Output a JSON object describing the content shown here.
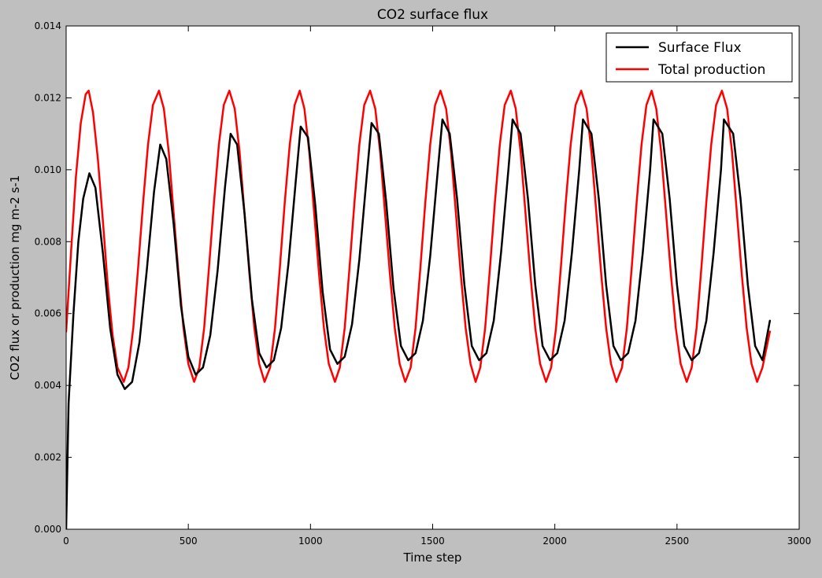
{
  "chart_data": {
    "type": "line",
    "title": "CO2 surface flux",
    "xlabel": "Time step",
    "ylabel": "CO2 flux or production mg m-2 s-1",
    "xlim": [
      0,
      3000
    ],
    "ylim": [
      0,
      0.014
    ],
    "x_ticks": [
      0,
      500,
      1000,
      1500,
      2000,
      2500,
      3000
    ],
    "x_tick_labels": [
      "0",
      "500",
      "1000",
      "1500",
      "2000",
      "2500",
      "3000"
    ],
    "y_ticks": [
      0,
      0.002,
      0.004,
      0.006,
      0.008,
      0.01,
      0.012,
      0.014
    ],
    "y_tick_labels": [
      "0.000",
      "0.002",
      "0.004",
      "0.006",
      "0.008",
      "0.010",
      "0.012",
      "0.014"
    ],
    "grid": false,
    "legend_position": "top-right",
    "series": [
      {
        "name": "Surface Flux",
        "color": "#000000",
        "x": [
          0,
          10,
          30,
          50,
          70,
          95,
          120,
          150,
          180,
          210,
          240,
          270,
          300,
          330,
          360,
          385,
          410,
          440,
          470,
          500,
          530,
          560,
          590,
          620,
          650,
          673,
          700,
          730,
          760,
          790,
          820,
          850,
          880,
          910,
          940,
          960,
          990,
          1020,
          1050,
          1080,
          1110,
          1140,
          1170,
          1200,
          1230,
          1250,
          1280,
          1310,
          1340,
          1370,
          1400,
          1430,
          1460,
          1490,
          1520,
          1540,
          1570,
          1600,
          1630,
          1660,
          1690,
          1720,
          1750,
          1780,
          1810,
          1827,
          1860,
          1890,
          1920,
          1950,
          1980,
          2010,
          2040,
          2070,
          2100,
          2115,
          2150,
          2180,
          2210,
          2240,
          2270,
          2300,
          2330,
          2360,
          2390,
          2404,
          2440,
          2470,
          2500,
          2530,
          2560,
          2590,
          2620,
          2650,
          2680,
          2692,
          2730,
          2760,
          2790,
          2820,
          2850,
          2880
        ],
        "y": [
          0.0,
          0.0035,
          0.006,
          0.008,
          0.0092,
          0.0099,
          0.0095,
          0.0077,
          0.0056,
          0.0043,
          0.0039,
          0.0041,
          0.0052,
          0.0072,
          0.0094,
          0.0107,
          0.0103,
          0.0085,
          0.0062,
          0.0048,
          0.0043,
          0.0045,
          0.0054,
          0.0072,
          0.0095,
          0.011,
          0.0107,
          0.0088,
          0.0064,
          0.0049,
          0.0045,
          0.0047,
          0.0056,
          0.0074,
          0.0097,
          0.0112,
          0.0109,
          0.009,
          0.0066,
          0.005,
          0.0046,
          0.0048,
          0.0057,
          0.0075,
          0.0098,
          0.0113,
          0.011,
          0.0091,
          0.0067,
          0.0051,
          0.0047,
          0.0049,
          0.0058,
          0.0076,
          0.0099,
          0.0114,
          0.011,
          0.0092,
          0.0068,
          0.0051,
          0.0047,
          0.0049,
          0.0058,
          0.0077,
          0.01,
          0.0114,
          0.011,
          0.0092,
          0.0068,
          0.0051,
          0.0047,
          0.0049,
          0.0058,
          0.0077,
          0.01,
          0.0114,
          0.011,
          0.0092,
          0.0068,
          0.0051,
          0.0047,
          0.0049,
          0.0058,
          0.0077,
          0.01,
          0.0114,
          0.011,
          0.0092,
          0.0068,
          0.0051,
          0.0047,
          0.0049,
          0.0058,
          0.0077,
          0.01,
          0.0114,
          0.011,
          0.0092,
          0.0068,
          0.0051,
          0.0047,
          0.0058
        ]
      },
      {
        "name": "Total production",
        "color": "#ff0000",
        "x": [
          0,
          20,
          40,
          60,
          80,
          92,
          110,
          130,
          150,
          170,
          190,
          210,
          236,
          255,
          275,
          295,
          315,
          335,
          355,
          380,
          400,
          420,
          440,
          460,
          480,
          500,
          524,
          545,
          565,
          585,
          605,
          625,
          645,
          668,
          690,
          710,
          730,
          750,
          770,
          790,
          812,
          835,
          855,
          875,
          895,
          915,
          935,
          956,
          975,
          995,
          1015,
          1035,
          1055,
          1075,
          1100,
          1120,
          1140,
          1160,
          1180,
          1200,
          1220,
          1244,
          1265,
          1285,
          1305,
          1325,
          1345,
          1365,
          1388,
          1410,
          1430,
          1450,
          1470,
          1490,
          1510,
          1532,
          1555,
          1575,
          1595,
          1615,
          1635,
          1655,
          1676,
          1695,
          1715,
          1735,
          1755,
          1775,
          1795,
          1820,
          1840,
          1860,
          1880,
          1900,
          1920,
          1940,
          1964,
          1985,
          2005,
          2025,
          2045,
          2065,
          2085,
          2108,
          2130,
          2150,
          2170,
          2190,
          2210,
          2230,
          2252,
          2275,
          2295,
          2315,
          2335,
          2355,
          2375,
          2396,
          2415,
          2435,
          2455,
          2475,
          2495,
          2515,
          2540,
          2560,
          2580,
          2600,
          2620,
          2640,
          2660,
          2684,
          2705,
          2725,
          2745,
          2765,
          2785,
          2805,
          2828,
          2850,
          2880
        ],
        "y": [
          0.0055,
          0.0077,
          0.0098,
          0.0113,
          0.0121,
          0.0122,
          0.0116,
          0.0103,
          0.0086,
          0.0068,
          0.0054,
          0.0045,
          0.0041,
          0.0045,
          0.0056,
          0.0073,
          0.0091,
          0.0107,
          0.0118,
          0.0122,
          0.0117,
          0.0105,
          0.0088,
          0.0071,
          0.0056,
          0.0046,
          0.0041,
          0.0045,
          0.0056,
          0.0073,
          0.0091,
          0.0107,
          0.0118,
          0.0122,
          0.0117,
          0.0105,
          0.0088,
          0.0071,
          0.0056,
          0.0046,
          0.0041,
          0.0045,
          0.0056,
          0.0073,
          0.0091,
          0.0107,
          0.0118,
          0.0122,
          0.0117,
          0.0105,
          0.0088,
          0.0071,
          0.0056,
          0.0046,
          0.0041,
          0.0045,
          0.0056,
          0.0073,
          0.0091,
          0.0107,
          0.0118,
          0.0122,
          0.0117,
          0.0105,
          0.0088,
          0.0071,
          0.0056,
          0.0046,
          0.0041,
          0.0045,
          0.0056,
          0.0073,
          0.0091,
          0.0107,
          0.0118,
          0.0122,
          0.0117,
          0.0105,
          0.0088,
          0.0071,
          0.0056,
          0.0046,
          0.0041,
          0.0045,
          0.0056,
          0.0073,
          0.0091,
          0.0107,
          0.0118,
          0.0122,
          0.0117,
          0.0105,
          0.0088,
          0.0071,
          0.0056,
          0.0046,
          0.0041,
          0.0045,
          0.0056,
          0.0073,
          0.0091,
          0.0107,
          0.0118,
          0.0122,
          0.0117,
          0.0105,
          0.0088,
          0.0071,
          0.0056,
          0.0046,
          0.0041,
          0.0045,
          0.0056,
          0.0073,
          0.0091,
          0.0107,
          0.0118,
          0.0122,
          0.0117,
          0.0105,
          0.0088,
          0.0071,
          0.0056,
          0.0046,
          0.0041,
          0.0045,
          0.0056,
          0.0073,
          0.0091,
          0.0107,
          0.0118,
          0.0122,
          0.0117,
          0.0105,
          0.0088,
          0.0071,
          0.0056,
          0.0046,
          0.0041,
          0.0045,
          0.0055
        ]
      }
    ]
  }
}
